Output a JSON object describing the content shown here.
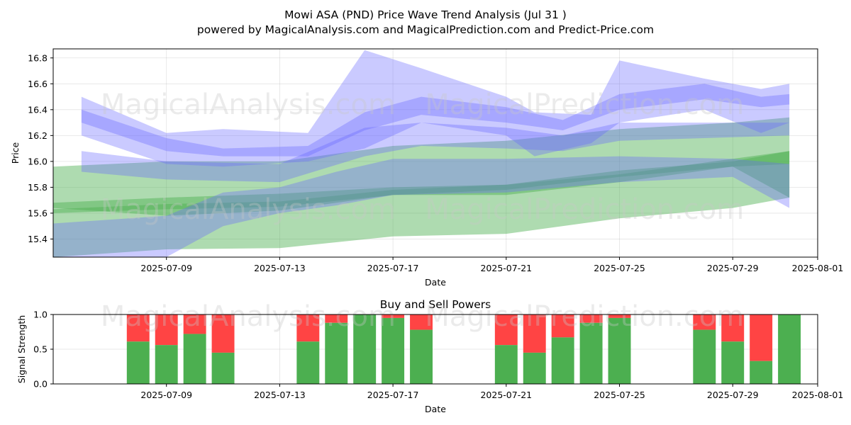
{
  "chart_data": [
    {
      "type": "area",
      "title": "Mowi ASA (PND) Price Wave Trend Analysis (Jul 31 )",
      "subtitle": "powered by MagicalAnalysis.com and MagicalPrediction.com and Predict-Price.com",
      "xlabel": "Date",
      "ylabel": "Price",
      "x_ticks": [
        "2025-07-09",
        "2025-07-13",
        "2025-07-17",
        "2025-07-21",
        "2025-07-25",
        "2025-07-29",
        "2025-08-01"
      ],
      "y_ticks": [
        "15.4",
        "15.6",
        "15.8",
        "16.0",
        "16.2",
        "16.4",
        "16.6",
        "16.8"
      ],
      "xlim": [
        "2025-07-05",
        "2025-08-01"
      ],
      "ylim": [
        15.26,
        16.87
      ],
      "grid": true,
      "watermarks": [
        "MagicalAnalysis.com",
        "MagicalPrediction.com"
      ],
      "colors": {
        "blue_band": "#6666ff",
        "green_band": "#4caf50"
      },
      "bands": [
        {
          "color": "green",
          "points": [
            [
              "2025-07-05",
              15.96,
              15.64
            ],
            [
              "2025-07-09",
              16.0,
              15.58
            ],
            [
              "2025-07-13",
              16.0,
              15.62
            ],
            [
              "2025-07-17",
              16.12,
              15.74
            ],
            [
              "2025-07-21",
              16.16,
              15.74
            ],
            [
              "2025-07-25",
              16.25,
              15.84
            ],
            [
              "2025-07-29",
              16.3,
              15.96
            ],
            [
              "2025-07-31",
              16.34,
              15.72
            ]
          ]
        },
        {
          "color": "green",
          "points": [
            [
              "2025-07-05",
              15.68,
              15.26
            ],
            [
              "2025-07-09",
              15.72,
              15.32
            ],
            [
              "2025-07-13",
              15.75,
              15.33
            ],
            [
              "2025-07-17",
              15.8,
              15.42
            ],
            [
              "2025-07-21",
              15.82,
              15.44
            ],
            [
              "2025-07-25",
              15.9,
              15.56
            ],
            [
              "2025-07-29",
              16.02,
              15.64
            ],
            [
              "2025-07-31",
              16.08,
              15.72
            ]
          ]
        },
        {
          "color": "green",
          "points": [
            [
              "2025-07-05",
              15.63,
              15.6
            ],
            [
              "2025-07-09",
              15.67,
              15.63
            ],
            [
              "2025-07-13",
              15.69,
              15.65
            ],
            [
              "2025-07-17",
              15.78,
              15.74
            ],
            [
              "2025-07-21",
              15.82,
              15.78
            ],
            [
              "2025-07-25",
              15.93,
              15.88
            ],
            [
              "2025-07-29",
              16.0,
              15.96
            ],
            [
              "2025-07-31",
              16.08,
              15.98
            ]
          ]
        },
        {
          "color": "blue",
          "points": [
            [
              "2025-07-05",
              15.52,
              15.26
            ],
            [
              "2025-07-09",
              15.58,
              15.26
            ],
            [
              "2025-07-11",
              15.76,
              15.5
            ],
            [
              "2025-07-13",
              15.8,
              15.6
            ],
            [
              "2025-07-15",
              15.92,
              15.66
            ],
            [
              "2025-07-17",
              16.02,
              15.74
            ],
            [
              "2025-07-21",
              16.02,
              15.76
            ],
            [
              "2025-07-25",
              16.04,
              15.84
            ],
            [
              "2025-07-29",
              16.02,
              15.88
            ],
            [
              "2025-07-31",
              15.98,
              15.64
            ]
          ]
        },
        {
          "color": "blue",
          "points": [
            [
              "2025-07-06",
              16.4,
              16.3
            ],
            [
              "2025-07-09",
              16.18,
              16.08
            ],
            [
              "2025-07-11",
              16.1,
              16.04
            ],
            [
              "2025-07-14",
              16.12,
              16.04
            ],
            [
              "2025-07-16",
              16.38,
              16.24
            ],
            [
              "2025-07-18",
              16.5,
              16.36
            ],
            [
              "2025-07-21",
              16.42,
              16.3
            ],
            [
              "2025-07-23",
              16.32,
              16.24
            ],
            [
              "2025-07-25",
              16.52,
              16.4
            ],
            [
              "2025-07-28",
              16.6,
              16.48
            ],
            [
              "2025-07-30",
              16.5,
              16.42
            ],
            [
              "2025-07-31",
              16.52,
              16.44
            ]
          ]
        },
        {
          "color": "blue",
          "points": [
            [
              "2025-07-06",
              16.5,
              16.2
            ],
            [
              "2025-07-09",
              16.22,
              15.98
            ],
            [
              "2025-07-11",
              16.25,
              15.96
            ],
            [
              "2025-07-14",
              16.22,
              16.0
            ],
            [
              "2025-07-16",
              16.86,
              16.1
            ],
            [
              "2025-07-18",
              16.72,
              16.3
            ],
            [
              "2025-07-21",
              16.5,
              16.2
            ],
            [
              "2025-07-22",
              16.38,
              16.04
            ],
            [
              "2025-07-24",
              16.36,
              16.14
            ],
            [
              "2025-07-25",
              16.78,
              16.3
            ],
            [
              "2025-07-28",
              16.64,
              16.4
            ],
            [
              "2025-07-30",
              16.56,
              16.22
            ],
            [
              "2025-07-31",
              16.6,
              16.3
            ]
          ]
        },
        {
          "color": "blue",
          "points": [
            [
              "2025-07-06",
              16.08,
              15.92
            ],
            [
              "2025-07-09",
              16.0,
              15.86
            ],
            [
              "2025-07-13",
              15.98,
              15.84
            ],
            [
              "2025-07-16",
              16.26,
              16.04
            ],
            [
              "2025-07-18",
              16.3,
              16.12
            ],
            [
              "2025-07-21",
              16.26,
              16.1
            ],
            [
              "2025-07-23",
              16.2,
              16.08
            ],
            [
              "2025-07-25",
              16.3,
              16.16
            ],
            [
              "2025-07-31",
              16.3,
              16.2
            ]
          ]
        }
      ]
    },
    {
      "type": "bar",
      "title": "Buy and Sell Powers",
      "xlabel": "Date",
      "ylabel": "Signal Strength",
      "x_ticks": [
        "2025-07-09",
        "2025-07-13",
        "2025-07-17",
        "2025-07-21",
        "2025-07-25",
        "2025-07-29",
        "2025-08-01"
      ],
      "y_ticks": [
        "0.0",
        "0.5",
        "1.0"
      ],
      "ylim": [
        0,
        1
      ],
      "grid": true,
      "colors": {
        "buy": "#4caf50",
        "sell": "#ff4444"
      },
      "series": [
        {
          "key": "buy",
          "color": "#4caf50"
        },
        {
          "key": "sell",
          "color": "#ff4444"
        }
      ],
      "categories": [
        "2025-07-08",
        "2025-07-09",
        "2025-07-10",
        "2025-07-11",
        "2025-07-14",
        "2025-07-15",
        "2025-07-16",
        "2025-07-17",
        "2025-07-18",
        "2025-07-21",
        "2025-07-22",
        "2025-07-23",
        "2025-07-24",
        "2025-07-25",
        "2025-07-28",
        "2025-07-29",
        "2025-07-30",
        "2025-07-31"
      ],
      "buy": [
        0.61,
        0.56,
        0.72,
        0.45,
        0.61,
        0.88,
        1.0,
        0.95,
        0.78,
        0.56,
        0.45,
        0.67,
        0.88,
        0.95,
        0.78,
        0.61,
        0.33,
        1.0
      ]
    }
  ]
}
